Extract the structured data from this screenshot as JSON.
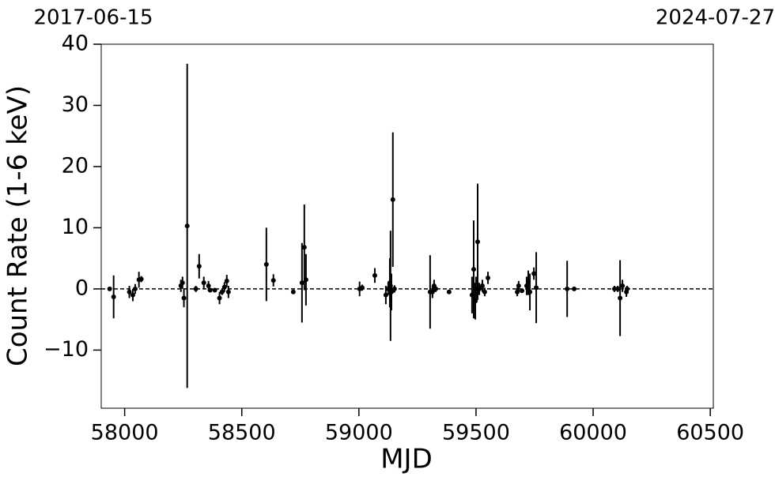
{
  "chart_data": {
    "type": "errorbar",
    "x_label": "MJD",
    "y_label": "Count Rate (1-6 keV)",
    "xlim": [
      57900,
      60513
    ],
    "ylim": [
      -19.5,
      40
    ],
    "xticks": [
      58000,
      58500,
      59000,
      59500,
      60000,
      60500
    ],
    "yticks": [
      {
        "value": -10,
        "label": "−10"
      },
      0,
      10,
      20,
      30,
      40
    ],
    "x2ticks": [
      {
        "value": 57900,
        "label": "2017-06-15"
      },
      {
        "value": 60513,
        "label": "2024-07-27"
      }
    ],
    "hline": 0,
    "color": "#000000",
    "series": [
      {
        "x": [
          57936,
          57953,
          58020,
          58035,
          58045,
          58061,
          58071,
          58240,
          58247,
          58253,
          58267,
          58304,
          58318,
          58338,
          58358,
          58365,
          58385,
          58405,
          58416,
          58426,
          58436,
          58443,
          58605,
          58635,
          58720,
          58757,
          58767,
          58774,
          59003,
          59014,
          59068,
          59115,
          59125,
          59132,
          59135,
          59139,
          59145,
          59152,
          59304,
          59314,
          59321,
          59328,
          59385,
          59483,
          59490,
          59497,
          59500,
          59507,
          59514,
          59527,
          59537,
          59551,
          59676,
          59682,
          59696,
          59716,
          59723,
          59730,
          59747,
          59757,
          59889,
          59919,
          60091,
          60105,
          60115,
          60125,
          60142,
          60145
        ],
        "y": [
          0,
          -1.3,
          -0.5,
          -1,
          0,
          1.5,
          1.6,
          0.5,
          1,
          -1.5,
          10.3,
          0,
          3.7,
          1,
          0.5,
          -0.2,
          -0.2,
          -1.5,
          -0.5,
          0.3,
          1.3,
          -0.5,
          4,
          1.4,
          -0.5,
          1,
          6.8,
          1.5,
          0,
          0.2,
          2.2,
          -1,
          0,
          1,
          0.5,
          -0.5,
          14.6,
          0,
          -0.5,
          -0.5,
          0.5,
          0,
          -0.5,
          -1,
          3.2,
          -2,
          0,
          7.7,
          0,
          0.5,
          -0.5,
          1.8,
          -0.5,
          0.5,
          -0.3,
          0.5,
          1,
          -0.5,
          2.5,
          0.2,
          0,
          0,
          0,
          0,
          -1.5,
          0.5,
          -0.5,
          0
        ],
        "yerr": [
          0,
          3.5,
          1,
          1,
          0.8,
          1.3,
          0.5,
          1,
          1,
          1.5,
          26.5,
          0.5,
          2,
          1,
          0.8,
          0.3,
          0.3,
          1,
          0.5,
          0.8,
          1,
          1,
          6,
          1,
          0.3,
          6.5,
          7,
          4.2,
          1.2,
          0.5,
          1.2,
          1.5,
          1,
          4,
          9,
          3,
          11,
          0.6,
          6,
          1,
          1,
          0.5,
          0.3,
          3,
          8,
          3,
          2,
          9.5,
          1,
          1,
          0.7,
          1,
          0.7,
          0.8,
          0.3,
          1.5,
          2,
          3,
          1,
          5.8,
          4.6,
          0.3,
          0.5,
          0.5,
          6.2,
          1,
          0.8,
          0.5
        ]
      }
    ]
  }
}
